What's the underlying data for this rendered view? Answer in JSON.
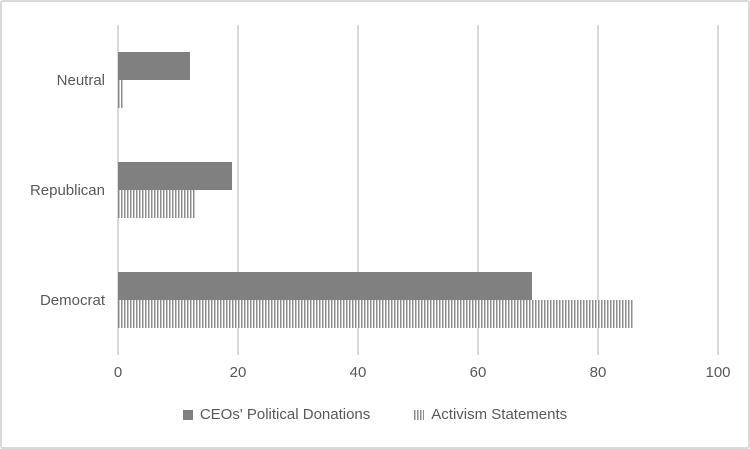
{
  "chart_data": {
    "type": "bar",
    "orientation": "horizontal",
    "title": "",
    "xlabel": "",
    "ylabel": "",
    "categories": [
      "Neutral",
      "Republican",
      "Democrat"
    ],
    "series": [
      {
        "name": "CEOs' Political Donations",
        "style": "solid",
        "color": "#808080",
        "values": [
          12,
          19,
          69
        ]
      },
      {
        "name": "Activism Statements",
        "style": "striped",
        "color": "#8c8c8c",
        "values": [
          1,
          13,
          86
        ]
      }
    ],
    "x_ticks": [
      "0",
      "20",
      "40",
      "60",
      "80",
      "100"
    ],
    "x_tick_values": [
      0,
      20,
      40,
      60,
      80,
      100
    ],
    "xlim": [
      0,
      100
    ],
    "grid": "vertical-major",
    "gridline_color": "#d9d9d9",
    "text_color": "#595959",
    "legend_position": "bottom-center"
  }
}
